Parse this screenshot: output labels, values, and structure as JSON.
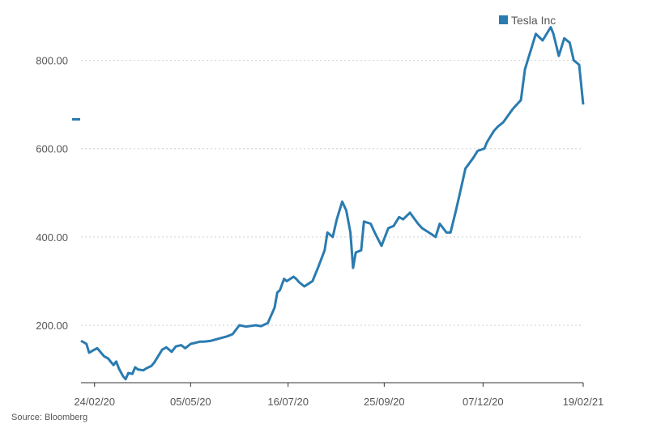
{
  "source": "Source: Bloomberg",
  "colors": {
    "series": "#2a7bb0",
    "grid": "#cfcfcf",
    "axis": "#333333",
    "text": "#555555"
  },
  "chart_data": {
    "type": "line",
    "legend": {
      "entries": [
        "Tesla Inc"
      ],
      "position": "top-right"
    },
    "x_ticks": [
      "24/02/20",
      "05/05/20",
      "16/07/20",
      "25/09/20",
      "07/12/20",
      "19/02/21"
    ],
    "y_ticks": [
      "200.00",
      "400.00",
      "600.00",
      "800.00"
    ],
    "ylim": [
      70,
      900
    ],
    "grid": true,
    "series": [
      {
        "name": "Tesla Inc",
        "x": [
          "2020-02-14",
          "2020-02-18",
          "2020-02-20",
          "2020-02-24",
          "2020-02-26",
          "2020-03-02",
          "2020-03-05",
          "2020-03-09",
          "2020-03-11",
          "2020-03-13",
          "2020-03-16",
          "2020-03-18",
          "2020-03-20",
          "2020-03-23",
          "2020-03-25",
          "2020-03-27",
          "2020-03-31",
          "2020-04-02",
          "2020-04-06",
          "2020-04-08",
          "2020-04-14",
          "2020-04-17",
          "2020-04-21",
          "2020-04-24",
          "2020-04-28",
          "2020-05-01",
          "2020-05-05",
          "2020-05-08",
          "2020-05-12",
          "2020-05-15",
          "2020-05-20",
          "2020-05-26",
          "2020-06-01",
          "2020-06-05",
          "2020-06-10",
          "2020-06-15",
          "2020-06-22",
          "2020-06-26",
          "2020-07-01",
          "2020-07-06",
          "2020-07-08",
          "2020-07-10",
          "2020-07-13",
          "2020-07-15",
          "2020-07-20",
          "2020-07-22",
          "2020-07-24",
          "2020-07-28",
          "2020-08-03",
          "2020-08-07",
          "2020-08-12",
          "2020-08-14",
          "2020-08-18",
          "2020-08-21",
          "2020-08-25",
          "2020-08-28",
          "2020-08-31",
          "2020-09-02",
          "2020-09-04",
          "2020-09-08",
          "2020-09-10",
          "2020-09-15",
          "2020-09-18",
          "2020-09-23",
          "2020-09-28",
          "2020-10-02",
          "2020-10-06",
          "2020-10-09",
          "2020-10-14",
          "2020-10-20",
          "2020-10-23",
          "2020-10-28",
          "2020-11-02",
          "2020-11-05",
          "2020-11-10",
          "2020-11-13",
          "2020-11-17",
          "2020-11-20",
          "2020-11-24",
          "2020-11-30",
          "2020-12-03",
          "2020-12-08",
          "2020-12-10",
          "2020-12-15",
          "2020-12-18",
          "2020-12-22",
          "2020-12-29",
          "2021-01-04",
          "2021-01-07",
          "2021-01-12",
          "2021-01-15",
          "2021-01-20",
          "2021-01-26",
          "2021-01-28",
          "2021-02-01",
          "2021-02-05",
          "2021-02-09",
          "2021-02-12",
          "2021-02-16",
          "2021-02-19"
        ],
        "values": [
          165,
          158,
          138,
          145,
          148,
          130,
          125,
          110,
          118,
          102,
          85,
          78,
          92,
          90,
          105,
          100,
          98,
          102,
          108,
          115,
          145,
          150,
          140,
          152,
          155,
          148,
          158,
          160,
          163,
          163,
          165,
          170,
          175,
          180,
          200,
          197,
          200,
          198,
          205,
          240,
          274,
          280,
          305,
          300,
          310,
          305,
          298,
          288,
          300,
          330,
          370,
          410,
          400,
          440,
          480,
          460,
          410,
          330,
          365,
          370,
          435,
          430,
          410,
          380,
          420,
          425,
          445,
          440,
          455,
          430,
          420,
          410,
          400,
          430,
          410,
          410,
          460,
          500,
          555,
          580,
          595,
          600,
          615,
          640,
          650,
          660,
          690,
          710,
          780,
          830,
          860,
          845,
          875,
          860,
          810,
          850,
          840,
          800,
          790,
          700
        ]
      }
    ]
  }
}
